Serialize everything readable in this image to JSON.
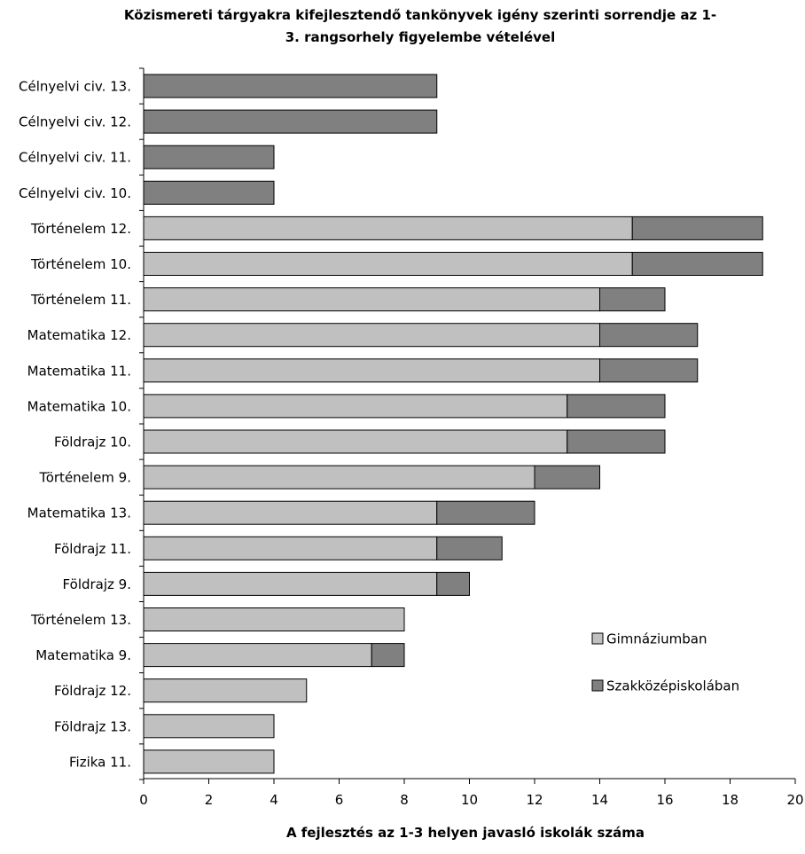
{
  "chart_data": {
    "type": "bar",
    "orientation": "horizontal",
    "stacked": true,
    "title_line1": "Közismereti tárgyakra kifejlesztendő tankönyvek igény szerinti sorrendje az 1-",
    "title_line2": "3. rangsorhely figyelembe vételével",
    "xlabel": "A fejlesztés az 1-3 helyen javasló iskolák száma",
    "ylabel": "",
    "xlim": [
      0,
      20
    ],
    "xticks": [
      "0",
      "2",
      "4",
      "6",
      "8",
      "10",
      "12",
      "14",
      "16",
      "18",
      "20"
    ],
    "grid": false,
    "legend_position": "right",
    "categories": [
      "Célnyelvi civ. 13.",
      "Célnyelvi civ. 12.",
      "Célnyelvi civ. 11.",
      "Célnyelvi civ. 10.",
      "Történelem 12.",
      "Történelem 10.",
      "Történelem 11.",
      "Matematika 12.",
      "Matematika 11.",
      "Matematika 10.",
      "Földrajz 10.",
      "Történelem 9.",
      "Matematika 13.",
      "Földrajz 11.",
      "Földrajz 9.",
      "Történelem 13.",
      "Matematika 9.",
      "Földrajz 12.",
      "Földrajz 13.",
      "Fizika 11."
    ],
    "series": [
      {
        "name": "Gimnáziumban",
        "color": "#c0c0c0",
        "values": [
          0,
          0,
          0,
          0,
          15,
          15,
          14,
          14,
          14,
          13,
          13,
          12,
          9,
          9,
          9,
          8,
          7,
          5,
          4,
          4
        ]
      },
      {
        "name": "Szakközépiskolában",
        "color": "#808080",
        "values": [
          9,
          9,
          4,
          4,
          4,
          4,
          2,
          3,
          3,
          3,
          3,
          2,
          3,
          2,
          1,
          0,
          1,
          0,
          0,
          0
        ]
      }
    ]
  }
}
